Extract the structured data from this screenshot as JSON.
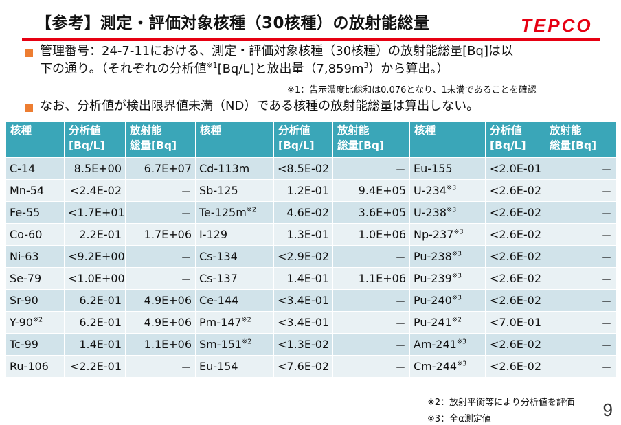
{
  "header": {
    "title": "【参考】測定・評価対象核種（30核種）の放射能総量",
    "logo_text": "TEPCO",
    "brand_color": "#e60012"
  },
  "bullets": [
    {
      "line1": "管理番号：24-7-11における、測定・評価対象核種（30核種）の放射能総量[Bq]は以",
      "line2a": "下の通り。（それぞれの分析値",
      "line2sup": "※1",
      "line2b": "[Bq/L]と放出量（7,859m",
      "line2sup2": "3",
      "line2c": "）から算出。）"
    },
    {
      "text": "なお、分析値が検出限界値未満（ND）である核種の放射能総量は算出しない。"
    }
  ],
  "note1": "※1：告示濃度比総和は0.076となり、1未満であることを確認",
  "table": {
    "headers": [
      "核種",
      "分析値\n[Bq/L]",
      "放射能\n総量[Bq]",
      "核種",
      "分析値\n[Bq/L]",
      "放射能\n総量[Bq]",
      "核種",
      "分析値\n[Bq/L]",
      "放射能\n総量[Bq]"
    ],
    "header_color": "#3aa6b8",
    "rows": [
      [
        {
          "n": "C-14",
          "s": ""
        },
        "8.5E+00",
        "6.7E+07",
        {
          "n": "Cd-113m",
          "s": ""
        },
        "<8.5E-02",
        "－",
        {
          "n": "Eu-155",
          "s": ""
        },
        "<2.0E-01",
        "－"
      ],
      [
        {
          "n": "Mn-54",
          "s": ""
        },
        "<2.4E-02",
        "－",
        {
          "n": "Sb-125",
          "s": ""
        },
        "1.2E-01",
        "9.4E+05",
        {
          "n": "U-234",
          "s": "※3"
        },
        "<2.6E-02",
        "－"
      ],
      [
        {
          "n": "Fe-55",
          "s": ""
        },
        "<1.7E+01",
        "－",
        {
          "n": "Te-125m",
          "s": "※2"
        },
        "4.6E-02",
        "3.6E+05",
        {
          "n": "U-238",
          "s": "※3"
        },
        "<2.6E-02",
        "－"
      ],
      [
        {
          "n": "Co-60",
          "s": ""
        },
        "2.2E-01",
        "1.7E+06",
        {
          "n": "I-129",
          "s": ""
        },
        "1.3E-01",
        "1.0E+06",
        {
          "n": "Np-237",
          "s": "※3"
        },
        "<2.6E-02",
        "－"
      ],
      [
        {
          "n": "Ni-63",
          "s": ""
        },
        "<9.2E+00",
        "－",
        {
          "n": "Cs-134",
          "s": ""
        },
        "<2.9E-02",
        "－",
        {
          "n": "Pu-238",
          "s": "※3"
        },
        "<2.6E-02",
        "－"
      ],
      [
        {
          "n": "Se-79",
          "s": ""
        },
        "<1.0E+00",
        "－",
        {
          "n": "Cs-137",
          "s": ""
        },
        "1.4E-01",
        "1.1E+06",
        {
          "n": "Pu-239",
          "s": "※3"
        },
        "<2.6E-02",
        "－"
      ],
      [
        {
          "n": "Sr-90",
          "s": ""
        },
        "6.2E-01",
        "4.9E+06",
        {
          "n": "Ce-144",
          "s": ""
        },
        "<3.4E-01",
        "－",
        {
          "n": "Pu-240",
          "s": "※3"
        },
        "<2.6E-02",
        "－"
      ],
      [
        {
          "n": "Y-90",
          "s": "※2"
        },
        "6.2E-01",
        "4.9E+06",
        {
          "n": "Pm-147",
          "s": "※2"
        },
        "<3.4E-01",
        "－",
        {
          "n": "Pu-241",
          "s": "※2"
        },
        "<7.0E-01",
        "－"
      ],
      [
        {
          "n": "Tc-99",
          "s": ""
        },
        "1.4E-01",
        "1.1E+06",
        {
          "n": "Sm-151",
          "s": "※2"
        },
        "<1.3E-02",
        "－",
        {
          "n": "Am-241",
          "s": "※3"
        },
        "<2.6E-02",
        "－"
      ],
      [
        {
          "n": "Ru-106",
          "s": ""
        },
        "<2.2E-01",
        "－",
        {
          "n": "Eu-154",
          "s": ""
        },
        "<7.6E-02",
        "－",
        {
          "n": "Cm-244",
          "s": "※3"
        },
        "<2.6E-02",
        "－"
      ]
    ]
  },
  "note2": "※2：放射平衡等により分析値を評価",
  "note3": "※3：全α測定値",
  "page_number": "9"
}
